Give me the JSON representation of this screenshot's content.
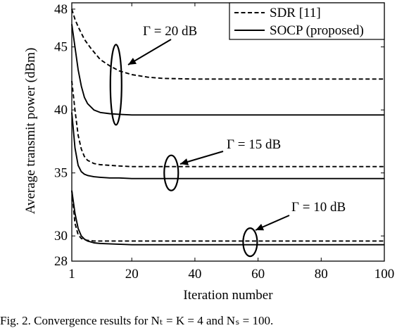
{
  "chart_data": {
    "type": "line",
    "xlabel": "Iteration number",
    "ylabel": "Average transmit power (dBm)",
    "xlim": [
      1,
      100
    ],
    "ylim": [
      28,
      48.5
    ],
    "xticks": [
      "1",
      "20",
      "40",
      "60",
      "80",
      "100"
    ],
    "xtick_values": [
      1,
      20,
      40,
      60,
      80,
      100
    ],
    "yticks": [
      "28",
      "30",
      "35",
      "40",
      "45",
      "48"
    ],
    "ytick_values": [
      28,
      30,
      35,
      40,
      45,
      48
    ],
    "grid": false,
    "legend_position": "top-right",
    "legend": [
      {
        "name": "SDR [11]",
        "style": "dashed"
      },
      {
        "name": "SOCP (proposed)",
        "style": "solid"
      }
    ],
    "series": [
      {
        "legend": "SDR [11]",
        "gamma": "Γ = 20 dB",
        "style": "dashed",
        "x": [
          1,
          2,
          3,
          5,
          7,
          10,
          13,
          16,
          20,
          25,
          30,
          40,
          50,
          60,
          80,
          100
        ],
        "y": [
          48.0,
          47.2,
          46.6,
          45.6,
          44.9,
          44.0,
          43.5,
          43.1,
          42.8,
          42.6,
          42.5,
          42.45,
          42.45,
          42.45,
          42.45,
          42.45
        ]
      },
      {
        "legend": "SOCP (proposed)",
        "gamma": "Γ = 20 dB",
        "style": "solid",
        "x": [
          1,
          2,
          3,
          4,
          5,
          6,
          8,
          10,
          13,
          16,
          20,
          30,
          40,
          60,
          80,
          100
        ],
        "y": [
          46.8,
          45.0,
          43.2,
          41.9,
          41.0,
          40.5,
          40.0,
          39.8,
          39.7,
          39.65,
          39.6,
          39.6,
          39.6,
          39.6,
          39.6,
          39.6
        ]
      },
      {
        "legend": "SDR [11]",
        "gamma": "Γ = 15 dB",
        "style": "dashed",
        "x": [
          1,
          2,
          3,
          4,
          5,
          6,
          8,
          10,
          13,
          16,
          20,
          30,
          40,
          60,
          80,
          100
        ],
        "y": [
          42.3,
          40.0,
          38.0,
          36.9,
          36.3,
          36.0,
          35.75,
          35.65,
          35.6,
          35.55,
          35.5,
          35.5,
          35.5,
          35.5,
          35.5,
          35.5
        ]
      },
      {
        "legend": "SOCP (proposed)",
        "gamma": "Γ = 15 dB",
        "style": "solid",
        "x": [
          1,
          2,
          3,
          4,
          5,
          6,
          8,
          10,
          13,
          16,
          20,
          30,
          40,
          60,
          80,
          100
        ],
        "y": [
          39.8,
          37.0,
          35.6,
          35.1,
          34.9,
          34.8,
          34.7,
          34.65,
          34.6,
          34.6,
          34.55,
          34.55,
          34.55,
          34.55,
          34.55,
          34.55
        ]
      },
      {
        "legend": "SDR [11]",
        "gamma": "Γ = 10 dB",
        "style": "dashed",
        "x": [
          1,
          2,
          3,
          4,
          5,
          6,
          8,
          10,
          15,
          20,
          30,
          40,
          60,
          80,
          100
        ],
        "y": [
          33.6,
          31.0,
          30.1,
          29.8,
          29.7,
          29.65,
          29.6,
          29.6,
          29.6,
          29.6,
          29.6,
          29.6,
          29.6,
          29.6,
          29.6
        ]
      },
      {
        "legend": "SOCP (proposed)",
        "gamma": "Γ = 10 dB",
        "style": "solid",
        "x": [
          1,
          2,
          3,
          4,
          5,
          6,
          8,
          10,
          15,
          20,
          30,
          40,
          60,
          80,
          100
        ],
        "y": [
          33.6,
          31.8,
          30.6,
          30.0,
          29.75,
          29.6,
          29.45,
          29.4,
          29.35,
          29.3,
          29.3,
          29.3,
          29.3,
          29.3,
          29.3
        ]
      }
    ],
    "annotations": [
      {
        "text": "Γ = 20 dB",
        "x": 15,
        "y": 42.0
      },
      {
        "text": "Γ = 15 dB",
        "x": 32.5,
        "y": 35.0
      },
      {
        "text": "Γ = 10 dB",
        "x": 57.5,
        "y": 29.5
      }
    ]
  },
  "caption": "Fig. 2.  Convergence results for Nₜ = K = 4 and Nₛ = 100."
}
